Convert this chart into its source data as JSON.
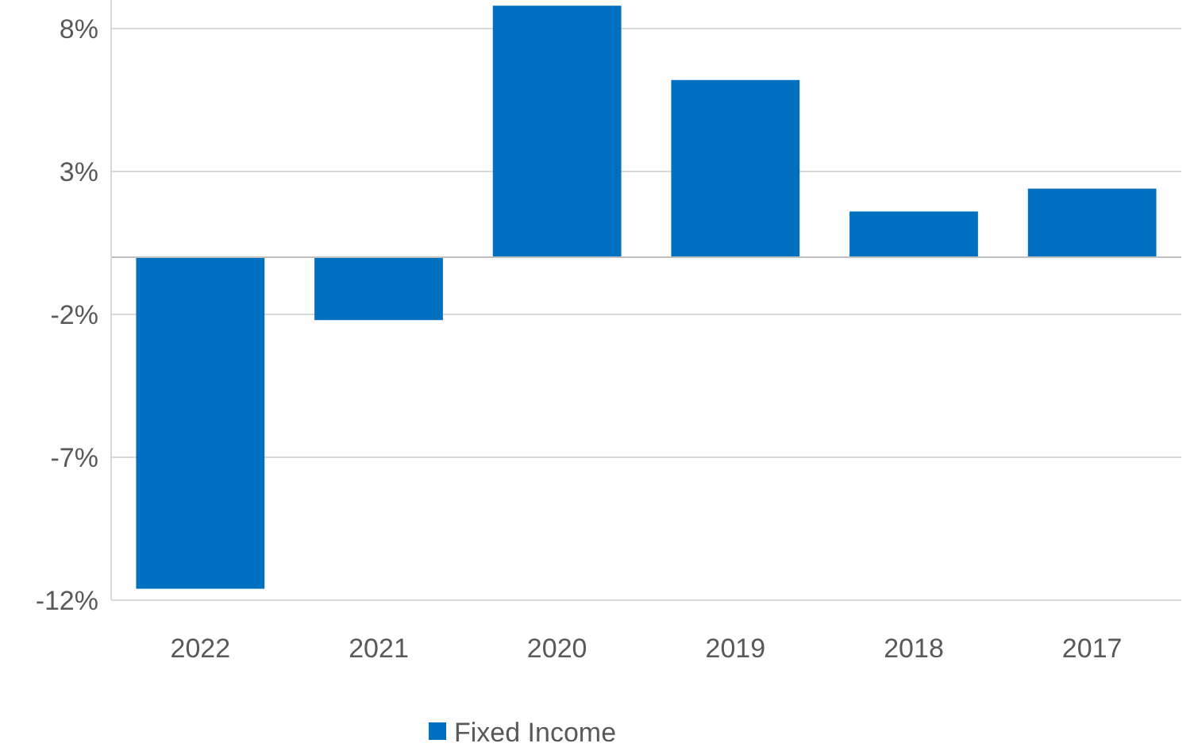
{
  "chart_data": {
    "type": "bar",
    "categories": [
      "2022",
      "2021",
      "2020",
      "2019",
      "2018",
      "2017"
    ],
    "series": [
      {
        "name": "Fixed Income",
        "color": "#0070c0",
        "values": [
          -11.6,
          -2.2,
          8.8,
          6.2,
          1.6,
          2.4
        ]
      }
    ],
    "ylim": [
      -12,
      9
    ],
    "yticks": [
      {
        "value": -12,
        "label": "-12%"
      },
      {
        "value": -7,
        "label": "-7%"
      },
      {
        "value": -2,
        "label": "-2%"
      },
      {
        "value": 3,
        "label": "3%"
      },
      {
        "value": 8,
        "label": "8%"
      }
    ],
    "grid": "y",
    "legend": "bottom"
  }
}
